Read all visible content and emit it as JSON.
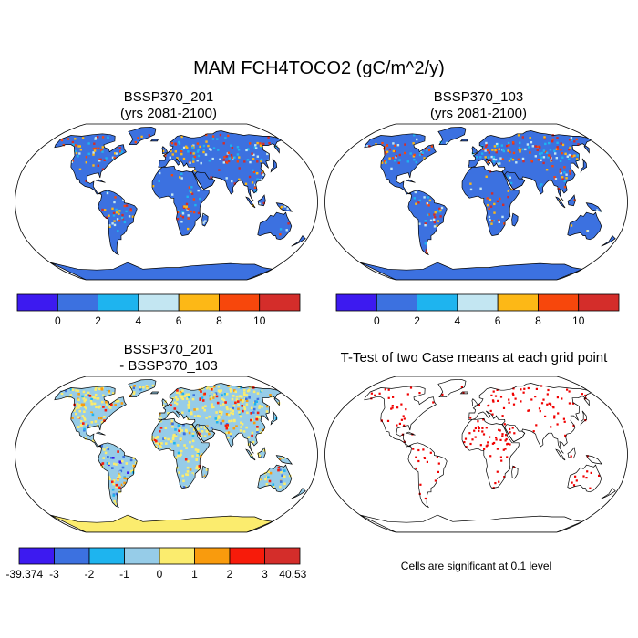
{
  "title": "MAM FCH4TOCO2 (gC/m^2/y)",
  "panels": [
    {
      "title": "BSSP370_201",
      "subtitle": "(yrs 2081-2100)",
      "kind": "field"
    },
    {
      "title": "BSSP370_103",
      "subtitle": "(yrs 2081-2100)",
      "kind": "field"
    },
    {
      "title": "BSSP370_201",
      "subtitle": "- BSSP370_103",
      "kind": "diff"
    },
    {
      "title": "T-Test of two Case means at each grid point",
      "subtitle": "",
      "kind": "ttest"
    }
  ],
  "colorbar_field": {
    "colors": [
      "#3d1af0",
      "#3c71e0",
      "#1eb4ef",
      "#c3e6f2",
      "#fdb816",
      "#f7470c",
      "#d42d2a"
    ],
    "labels": [
      "0",
      "2",
      "4",
      "6",
      "8",
      "10"
    ]
  },
  "colorbar_diff": {
    "colors": [
      "#3d1af0",
      "#3c71e0",
      "#1eb4ef",
      "#96cce8",
      "#fbec6e",
      "#f99b0d",
      "#f71b0a",
      "#d42d2a"
    ],
    "labels": [
      "-39.374",
      "-3",
      "-2",
      "-1",
      "0",
      "1",
      "2",
      "3",
      "40.53"
    ]
  },
  "note": "Cells are significant at 0.1 level",
  "colors": {
    "ocean": "#ffffff",
    "land_field": "#3c71e0",
    "land_diff": "#96cce8",
    "signif": "#f00000"
  }
}
